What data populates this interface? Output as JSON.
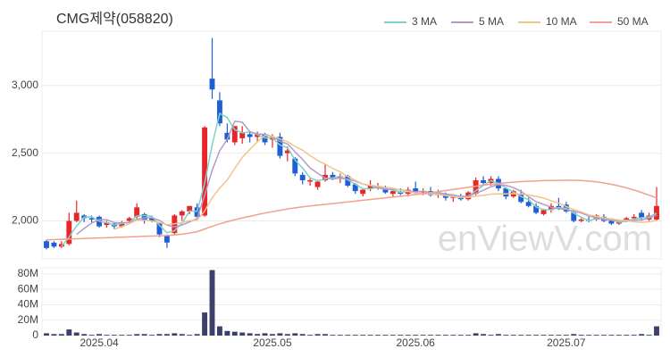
{
  "chart_data": {
    "type": "candlestick",
    "title": "CMG제약(058820)",
    "watermark": "enViewV.com",
    "categories": [
      null,
      null,
      null,
      null,
      null,
      null,
      null,
      "2025.04",
      null,
      null,
      null,
      null,
      null,
      null,
      null,
      null,
      null,
      null,
      null,
      null,
      null,
      null,
      null,
      null,
      null,
      null,
      null,
      null,
      null,
      null,
      "2025.05",
      null,
      null,
      null,
      null,
      null,
      null,
      null,
      null,
      null,
      null,
      null,
      null,
      null,
      null,
      null,
      null,
      null,
      null,
      "2025.06",
      null,
      null,
      null,
      null,
      null,
      null,
      null,
      null,
      null,
      null,
      null,
      null,
      null,
      null,
      null,
      null,
      null,
      null,
      null,
      "2025.07",
      null,
      null,
      null,
      null,
      null,
      null,
      null,
      null,
      null,
      null,
      null,
      null
    ],
    "open": [
      1850,
      1840,
      1810,
      1830,
      2000,
      2040,
      2020,
      2030,
      1970,
      1980,
      1960,
      2000,
      2030,
      2050,
      2020,
      1980,
      1890,
      1910,
      2040,
      2070,
      2100,
      2040,
      3050,
      2890,
      2650,
      2580,
      2610,
      2640,
      2620,
      2640,
      2600,
      2620,
      2500,
      2460,
      2340,
      2290,
      2250,
      2300,
      2340,
      2320,
      2330,
      2270,
      2200,
      2240,
      2250,
      2240,
      2200,
      2210,
      2200,
      2240,
      2210,
      2220,
      2190,
      2200,
      2170,
      2180,
      2160,
      2200,
      2300,
      2280,
      2310,
      2240,
      2180,
      2200,
      2140,
      2110,
      2050,
      2080,
      2110,
      2120,
      2060,
      2000,
      2010,
      2010,
      2030,
      2000,
      1980,
      2000,
      2020,
      2060,
      2010,
      2010
    ],
    "high": [
      1860,
      1850,
      1850,
      2060,
      2150,
      2050,
      2040,
      2040,
      2000,
      1990,
      2000,
      2030,
      2130,
      2060,
      2040,
      1990,
      1900,
      2050,
      2080,
      2110,
      2130,
      2700,
      3350,
      2950,
      2720,
      2700,
      2700,
      2660,
      2660,
      2650,
      2640,
      2650,
      2550,
      2470,
      2360,
      2320,
      2300,
      2420,
      2360,
      2350,
      2340,
      2280,
      2240,
      2300,
      2280,
      2260,
      2230,
      2240,
      2250,
      2290,
      2240,
      2250,
      2230,
      2210,
      2190,
      2200,
      2220,
      2320,
      2330,
      2330,
      2330,
      2250,
      2230,
      2230,
      2170,
      2130,
      2090,
      2130,
      2170,
      2140,
      2080,
      2020,
      2030,
      2050,
      2050,
      2020,
      2000,
      2030,
      2050,
      2080,
      2060,
      2250
    ],
    "low": [
      1790,
      1800,
      1800,
      1820,
      1990,
      1990,
      1990,
      1950,
      1950,
      1940,
      1950,
      1990,
      2010,
      1980,
      1990,
      1880,
      1800,
      1900,
      2000,
      2050,
      2010,
      2030,
      2900,
      2700,
      2580,
      2560,
      2570,
      2580,
      2580,
      2560,
      2540,
      2460,
      2440,
      2330,
      2270,
      2260,
      2230,
      2290,
      2300,
      2280,
      2250,
      2200,
      2180,
      2220,
      2230,
      2200,
      2180,
      2190,
      2180,
      2200,
      2190,
      2180,
      2170,
      2150,
      2140,
      2150,
      2150,
      2190,
      2260,
      2260,
      2220,
      2160,
      2170,
      2130,
      2100,
      2050,
      2040,
      2060,
      2080,
      2060,
      1990,
      1990,
      1990,
      2000,
      1990,
      1970,
      1970,
      1990,
      2000,
      2000,
      2000,
      2000
    ],
    "close": [
      1800,
      1810,
      1830,
      2000,
      2060,
      2020,
      2010,
      1960,
      1990,
      1960,
      1990,
      2020,
      2100,
      2000,
      2000,
      1900,
      1840,
      2040,
      2070,
      2110,
      2030,
      2690,
      2970,
      2720,
      2600,
      2700,
      2650,
      2620,
      2640,
      2580,
      2620,
      2480,
      2520,
      2350,
      2300,
      2300,
      2290,
      2340,
      2320,
      2330,
      2260,
      2220,
      2230,
      2260,
      2250,
      2210,
      2220,
      2200,
      2230,
      2210,
      2220,
      2190,
      2200,
      2170,
      2180,
      2160,
      2210,
      2300,
      2280,
      2310,
      2240,
      2180,
      2220,
      2140,
      2110,
      2060,
      2080,
      2110,
      2100,
      2070,
      2000,
      2010,
      2000,
      2040,
      2000,
      1980,
      1990,
      2020,
      2030,
      2020,
      2040,
      2110
    ],
    "up_color": "#e8262a",
    "down_color": "#1e5fd6",
    "ylim": [
      1720,
      3400
    ],
    "yticks": [
      {
        "value": 2000,
        "label": "2,000"
      },
      {
        "value": 2500,
        "label": "2,500"
      },
      {
        "value": 3000,
        "label": "3,000"
      }
    ],
    "grid": true,
    "legend": "top-right",
    "lines": [
      {
        "name": "3 MA",
        "color": "#7fd3c6",
        "values": [
          null,
          null,
          1813,
          1880,
          1963,
          2027,
          2030,
          1997,
          1987,
          1970,
          1980,
          1990,
          2037,
          2040,
          2033,
          1967,
          1913,
          1927,
          1983,
          2073,
          2070,
          2277,
          2563,
          2793,
          2763,
          2673,
          2650,
          2657,
          2637,
          2613,
          2613,
          2560,
          2540,
          2450,
          2390,
          2317,
          2297,
          2310,
          2317,
          2330,
          2303,
          2270,
          2237,
          2237,
          2247,
          2240,
          2227,
          2210,
          2217,
          2213,
          2220,
          2207,
          2203,
          2187,
          2183,
          2170,
          2183,
          2223,
          2263,
          2297,
          2277,
          2243,
          2213,
          2180,
          2157,
          2103,
          2083,
          2083,
          2097,
          2093,
          2057,
          2027,
          2003,
          2017,
          2013,
          2007,
          1990,
          1997,
          2013,
          2023,
          2030,
          2057
        ]
      },
      {
        "name": "5 MA",
        "color": "#b59ac8",
        "values": [
          null,
          null,
          null,
          null,
          1900,
          1944,
          1984,
          2010,
          2008,
          1988,
          1986,
          1988,
          2012,
          2022,
          2022,
          2004,
          1968,
          1956,
          1970,
          1992,
          2018,
          2188,
          2374,
          2518,
          2602,
          2736,
          2728,
          2658,
          2642,
          2638,
          2622,
          2588,
          2568,
          2510,
          2454,
          2390,
          2352,
          2316,
          2310,
          2316,
          2308,
          2294,
          2272,
          2260,
          2244,
          2234,
          2234,
          2228,
          2222,
          2214,
          2218,
          2210,
          2210,
          2198,
          2192,
          2180,
          2182,
          2204,
          2226,
          2252,
          2268,
          2262,
          2246,
          2218,
          2178,
          2142,
          2122,
          2100,
          2090,
          2084,
          2072,
          2058,
          2036,
          2024,
          2010,
          2004,
          2002,
          2006,
          2004,
          2008,
          2020,
          2044
        ]
      },
      {
        "name": "10 MA",
        "color": "#f1c48d",
        "values": [
          null,
          null,
          null,
          null,
          null,
          null,
          null,
          null,
          null,
          1939,
          1958,
          1979,
          2006,
          2006,
          2000,
          1988,
          1971,
          1979,
          1987,
          2002,
          2006,
          2073,
          2170,
          2242,
          2302,
          2388,
          2469,
          2527,
          2584,
          2631,
          2624,
          2605,
          2585,
          2550,
          2522,
          2482,
          2446,
          2419,
          2387,
          2362,
          2326,
          2300,
          2271,
          2262,
          2257,
          2248,
          2241,
          2227,
          2217,
          2205,
          2201,
          2198,
          2195,
          2186,
          2179,
          2174,
          2173,
          2183,
          2188,
          2198,
          2200,
          2199,
          2201,
          2198,
          2191,
          2181,
          2168,
          2149,
          2131,
          2107,
          2083,
          2066,
          2044,
          2034,
          2023,
          2015,
          2006,
          2001,
          1994,
          1989,
          1993,
          2004
        ]
      },
      {
        "name": "50 MA",
        "color": "#f3a08d",
        "values": [
          1860,
          1862,
          1864,
          1866,
          1868,
          1870,
          1872,
          1874,
          1876,
          1878,
          1880,
          1882,
          1884,
          1886,
          1888,
          1890,
          1892,
          1896,
          1902,
          1910,
          1920,
          1940,
          1960,
          1978,
          1994,
          2008,
          2022,
          2034,
          2046,
          2058,
          2068,
          2078,
          2088,
          2096,
          2104,
          2110,
          2116,
          2122,
          2128,
          2134,
          2140,
          2146,
          2152,
          2158,
          2164,
          2170,
          2176,
          2182,
          2188,
          2194,
          2200,
          2208,
          2216,
          2224,
          2232,
          2240,
          2248,
          2256,
          2264,
          2270,
          2276,
          2282,
          2286,
          2290,
          2293,
          2295,
          2297,
          2298,
          2299,
          2300,
          2300,
          2298,
          2294,
          2288,
          2280,
          2270,
          2258,
          2244,
          2228,
          2210,
          2190,
          2170
        ]
      }
    ],
    "volume": {
      "color": "#3c416b",
      "values": [
        3000000,
        2000000,
        2000000,
        8000000,
        4000000,
        2000000,
        1000000,
        2000000,
        1000000,
        1000000,
        1000000,
        1000000,
        2000000,
        2000000,
        1000000,
        2000000,
        2000000,
        3000000,
        2000000,
        1000000,
        2000000,
        30000000,
        85000000,
        12000000,
        6000000,
        5000000,
        4000000,
        3000000,
        2000000,
        3000000,
        2000000,
        3000000,
        2000000,
        3000000,
        2000000,
        1000000,
        2000000,
        2000000,
        1000000,
        1000000,
        1000000,
        1000000,
        1000000,
        1000000,
        1000000,
        1000000,
        1000000,
        1000000,
        1000000,
        1000000,
        1000000,
        1000000,
        1000000,
        1000000,
        1000000,
        1000000,
        1000000,
        3000000,
        2000000,
        1000000,
        2000000,
        1000000,
        1000000,
        1000000,
        1000000,
        1000000,
        1000000,
        1000000,
        1000000,
        1000000,
        2000000,
        1000000,
        1000000,
        1000000,
        1000000,
        1000000,
        1000000,
        1000000,
        1000000,
        2000000,
        1000000,
        12000000
      ],
      "ylim": [
        0,
        88000000
      ],
      "yticks": [
        0,
        {
          "value": 20000000,
          "label": "20M"
        },
        {
          "value": 40000000,
          "label": "40M"
        },
        {
          "value": 60000000,
          "label": "60M"
        },
        {
          "value": 80000000,
          "label": "80M"
        }
      ]
    }
  }
}
